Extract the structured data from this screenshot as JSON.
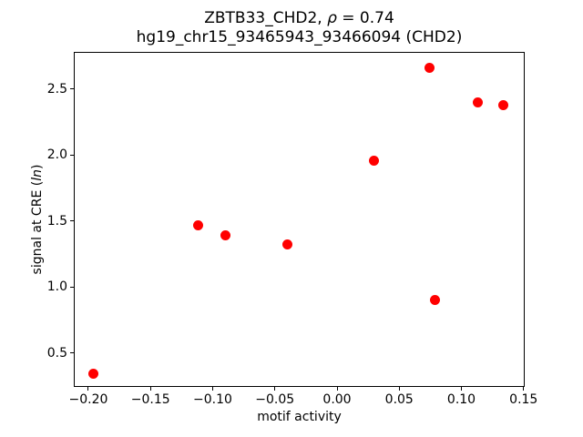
{
  "figure": {
    "title_line1": {
      "prefix": "ZBTB33_CHD2, ",
      "rho": "ρ",
      "suffix": " = 0.74"
    },
    "title_line2": "hg19_chr15_93465943_93466094 (CHD2)",
    "xlabel": "motif activity",
    "ylabel": {
      "prefix": "signal at CRE (",
      "italic": "ln",
      "suffix": ")"
    }
  },
  "chart_data": {
    "type": "scatter",
    "title": "ZBTB33_CHD2, ρ = 0.74",
    "subtitle": "hg19_chr15_93465943_93466094 (CHD2)",
    "xlabel": "motif activity",
    "ylabel": "signal at CRE (ln)",
    "marker_color": "#ff0000",
    "marker_shape": "circle",
    "grid": false,
    "legend": false,
    "xlim": [
      -0.2117,
      0.1509
    ],
    "ylim": [
      0.2425,
      2.783
    ],
    "x_ticks": [
      -0.2,
      -0.15,
      -0.1,
      -0.05,
      0.0,
      0.05,
      0.1,
      0.15
    ],
    "x_tick_labels": [
      "−0.20",
      "−0.15",
      "−0.10",
      "−0.05",
      "0.00",
      "0.05",
      "0.10",
      "0.15"
    ],
    "y_ticks": [
      0.5,
      1.0,
      1.5,
      2.0,
      2.5
    ],
    "y_tick_labels": [
      "0.5",
      "1.0",
      "1.5",
      "2.0",
      "2.5"
    ],
    "points": [
      {
        "x": -0.196,
        "y": 0.34
      },
      {
        "x": -0.112,
        "y": 1.47
      },
      {
        "x": -0.09,
        "y": 1.39
      },
      {
        "x": -0.04,
        "y": 1.32
      },
      {
        "x": 0.03,
        "y": 1.96
      },
      {
        "x": 0.074,
        "y": 2.66
      },
      {
        "x": 0.079,
        "y": 0.9
      },
      {
        "x": 0.113,
        "y": 2.4
      },
      {
        "x": 0.134,
        "y": 2.38
      }
    ]
  }
}
